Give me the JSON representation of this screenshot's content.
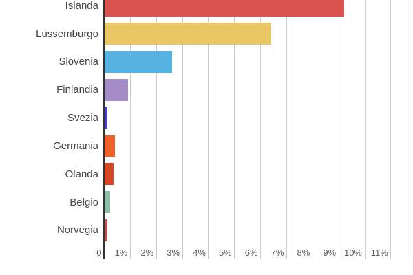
{
  "chart": {
    "background_color": "#ffffff",
    "axis_line_color": "#333333",
    "gridline_color": "#cccccc",
    "category_label_color": "#454545",
    "tick_label_color": "#5a5a5a"
  },
  "chart_data": {
    "type": "bar",
    "orientation": "horizontal",
    "title": "",
    "legend": "none",
    "grid": true,
    "categories": [
      "Islanda",
      "Lussemburgo",
      "Slovenia",
      "Finlandia",
      "Svezia",
      "Germania",
      "Olanda",
      "Belgio",
      "Norvegia"
    ],
    "values": [
      9.2,
      6.4,
      2.6,
      0.9,
      0.12,
      0.4,
      0.35,
      0.22,
      0.13
    ],
    "unit": "%",
    "bar_colors": [
      "#D9534F",
      "#E9C765",
      "#55B1DF",
      "#A48CC7",
      "#4C41C4",
      "#F2612C",
      "#D54623",
      "#8EC0A7",
      "#BC5153"
    ],
    "x_axis": {
      "tick_labels": [
        "0",
        "1%",
        "2%",
        "3%",
        "4%",
        "5%",
        "6%",
        "7%",
        "8%",
        "9%",
        "10%",
        "11%"
      ],
      "tick_values": [
        0,
        1,
        2,
        3,
        4,
        5,
        6,
        7,
        8,
        9,
        10,
        11
      ],
      "min": 0,
      "max": 11.75
    },
    "y_axis": {
      "label": ""
    }
  }
}
